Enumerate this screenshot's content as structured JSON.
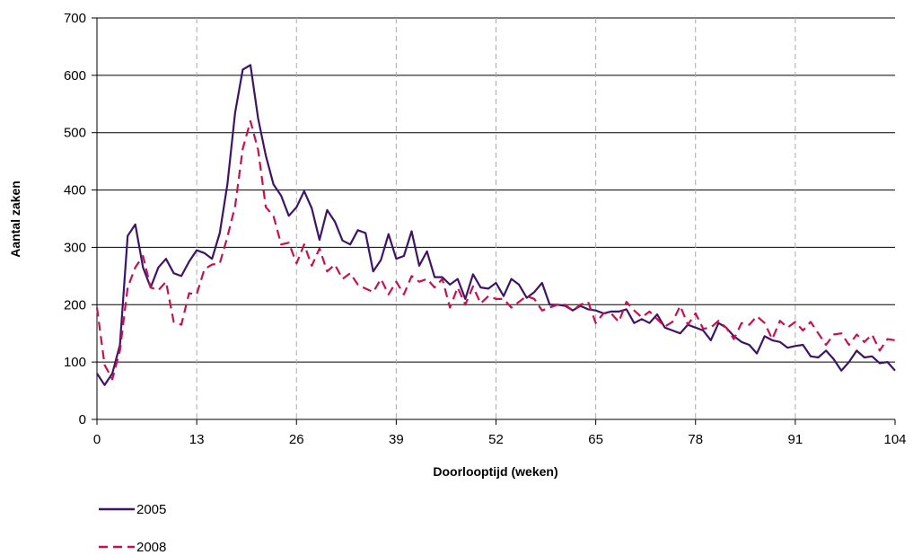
{
  "chart_data": {
    "type": "line",
    "title": "",
    "xlabel": "Doorlooptijd (weken)",
    "ylabel": "Aantal zaken",
    "xlim": [
      0,
      104
    ],
    "ylim": [
      0,
      700
    ],
    "x_ticks": [
      0,
      13,
      26,
      39,
      52,
      65,
      78,
      91,
      104
    ],
    "y_ticks": [
      0,
      100,
      200,
      300,
      400,
      500,
      600,
      700
    ],
    "y_grid": true,
    "x_grid": "dashed",
    "legend_position": "bottom-left",
    "colors": {
      "2005": "#3d1466",
      "2008": "#c8104f"
    },
    "series": [
      {
        "name": "2005",
        "style": "solid",
        "x": [
          0,
          1,
          2,
          3,
          4,
          5,
          6,
          7,
          8,
          9,
          10,
          11,
          12,
          13,
          14,
          15,
          16,
          17,
          18,
          19,
          20,
          21,
          22,
          23,
          24,
          25,
          26,
          27,
          28,
          29,
          30,
          31,
          32,
          33,
          34,
          35,
          36,
          37,
          38,
          39,
          40,
          41,
          42,
          43,
          44,
          45,
          46,
          47,
          48,
          49,
          50,
          51,
          52,
          53,
          54,
          55,
          56,
          57,
          58,
          59,
          60,
          61,
          62,
          63,
          64,
          65,
          66,
          67,
          68,
          69,
          70,
          71,
          72,
          73,
          74,
          75,
          76,
          77,
          78,
          79,
          80,
          81,
          82,
          83,
          84,
          85,
          86,
          87,
          88,
          89,
          90,
          91,
          92,
          93,
          94,
          95,
          96,
          97,
          98,
          99,
          100,
          101,
          102,
          103,
          104
        ],
        "y": [
          80,
          60,
          80,
          130,
          320,
          340,
          265,
          230,
          265,
          280,
          255,
          250,
          275,
          295,
          290,
          280,
          325,
          410,
          535,
          610,
          618,
          525,
          460,
          410,
          390,
          355,
          370,
          398,
          368,
          313,
          365,
          345,
          312,
          305,
          330,
          325,
          258,
          278,
          323,
          280,
          285,
          328,
          268,
          293,
          248,
          248,
          235,
          245,
          210,
          253,
          230,
          228,
          238,
          215,
          245,
          235,
          212,
          222,
          238,
          200,
          200,
          198,
          190,
          198,
          192,
          190,
          185,
          188,
          188,
          192,
          168,
          175,
          168,
          183,
          160,
          155,
          150,
          165,
          160,
          155,
          138,
          168,
          160,
          145,
          135,
          130,
          115,
          145,
          138,
          135,
          125,
          128,
          130,
          110,
          108,
          120,
          105,
          85,
          100,
          120,
          108,
          110,
          98,
          100,
          85
        ]
      },
      {
        "name": "2008",
        "style": "dashed",
        "x": [
          0,
          1,
          2,
          3,
          4,
          5,
          6,
          7,
          8,
          9,
          10,
          11,
          12,
          13,
          14,
          15,
          16,
          17,
          18,
          19,
          20,
          21,
          22,
          23,
          24,
          25,
          26,
          27,
          28,
          29,
          30,
          31,
          32,
          33,
          34,
          35,
          36,
          37,
          38,
          39,
          40,
          41,
          42,
          43,
          44,
          45,
          46,
          47,
          48,
          49,
          50,
          51,
          52,
          53,
          54,
          55,
          56,
          57,
          58,
          59,
          60,
          61,
          62,
          63,
          64,
          65,
          66,
          67,
          68,
          69,
          70,
          71,
          72,
          73,
          74,
          75,
          76,
          77,
          78,
          79,
          80,
          81,
          82,
          83,
          84,
          85,
          86,
          87,
          88,
          89,
          90,
          91,
          92,
          93,
          94,
          95,
          96,
          97,
          98,
          99,
          100,
          101,
          102,
          103,
          104
        ],
        "y": [
          195,
          95,
          70,
          120,
          230,
          265,
          285,
          230,
          225,
          240,
          170,
          165,
          220,
          218,
          262,
          270,
          272,
          318,
          372,
          472,
          520,
          470,
          370,
          355,
          305,
          308,
          272,
          305,
          268,
          298,
          258,
          270,
          245,
          255,
          235,
          228,
          222,
          245,
          218,
          240,
          218,
          250,
          240,
          245,
          230,
          245,
          195,
          230,
          200,
          232,
          202,
          215,
          210,
          210,
          195,
          205,
          215,
          210,
          190,
          195,
          200,
          200,
          190,
          200,
          205,
          168,
          185,
          185,
          170,
          205,
          190,
          178,
          188,
          175,
          162,
          170,
          198,
          165,
          185,
          158,
          160,
          172,
          160,
          140,
          168,
          165,
          180,
          168,
          140,
          172,
          160,
          170,
          155,
          170,
          150,
          130,
          148,
          150,
          130,
          148,
          135,
          148,
          120,
          140,
          138
        ]
      }
    ]
  }
}
